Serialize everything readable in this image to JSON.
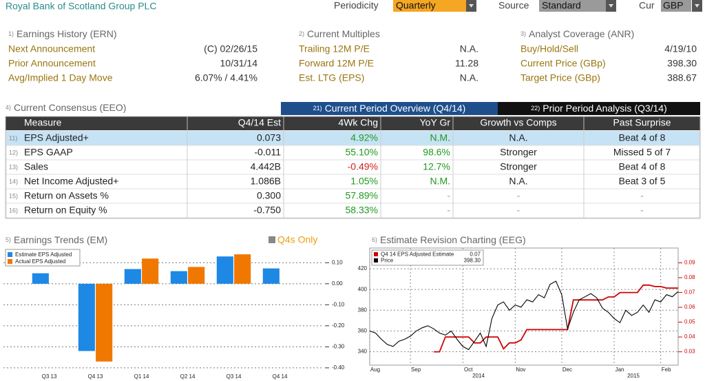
{
  "header": {
    "title": "Royal Bank of Scotland Group PLC",
    "periodicity_label": "Periodicity",
    "periodicity": "Quarterly",
    "source_label": "Source",
    "source": "Standard",
    "currency_label": "Cur",
    "currency": "GBP"
  },
  "panels": [
    {
      "number": "1)",
      "title": "Earnings History (ERN)",
      "rows": [
        [
          "Next Announcement",
          "(C) 02/26/15"
        ],
        [
          "Prior Announcement",
          "10/31/14"
        ],
        [
          "Avg/Implied 1 Day Move",
          "6.07% / 4.41%"
        ]
      ]
    },
    {
      "number": "2)",
      "title": "Current Multiples",
      "rows": [
        [
          "Trailing 12M P/E",
          "N.A."
        ],
        [
          "Forward 12M P/E",
          "11.28"
        ],
        [
          "Est. LTG (EPS)",
          "N.A."
        ]
      ]
    },
    {
      "number": "3)",
      "title": "Analyst Coverage (ANR)",
      "rows": [
        [
          "Buy/Hold/Sell",
          "4/19/10"
        ],
        [
          "Current Price (GBp)",
          "398.30"
        ],
        [
          "Target Price (GBp)",
          "388.67"
        ]
      ]
    }
  ],
  "consensus": {
    "number": "4)",
    "title": "Current Consensus (EEO)",
    "tabs": [
      {
        "number": "21)",
        "label": "Current Period Overview (Q4/14)"
      },
      {
        "number": "22)",
        "label": "Prior Period Analysis (Q3/14)"
      }
    ],
    "columns": [
      "Measure",
      "Q4/14 Est",
      "4Wk Chg",
      "YoY Gr",
      "Growth vs Comps",
      "Past Surprise"
    ],
    "rows": [
      {
        "number": "11)",
        "cells": [
          "EPS Adjusted+",
          "0.073",
          "4.92%",
          "N.M.",
          "N.A.",
          "Beat 4 of 8"
        ]
      },
      {
        "number": "12)",
        "cells": [
          "EPS GAAP",
          "-0.011",
          "55.10%",
          "98.6%",
          "Stronger",
          "Missed 5 of 7"
        ]
      },
      {
        "number": "13)",
        "cells": [
          "Sales",
          "4.442B",
          "-0.49%",
          "12.7%",
          "Stronger",
          "Beat 4 of 8"
        ]
      },
      {
        "number": "14)",
        "cells": [
          "Net Income Adjusted+",
          "1.086B",
          "1.05%",
          "N.M.",
          "N.A.",
          "Beat 3 of 5"
        ]
      },
      {
        "number": "15)",
        "cells": [
          "Return on Assets %",
          "0.300",
          "57.89%",
          "-",
          "-",
          "-"
        ]
      },
      {
        "number": "16)",
        "cells": [
          "Return on Equity %",
          "-0.750",
          "58.33%",
          "-",
          "-",
          "-"
        ]
      }
    ]
  },
  "chart_data": [
    {
      "type": "bar",
      "number": "5)",
      "title": "Earnings Trends (EM)",
      "toggle": "Q4s Only",
      "categories": [
        "Q3 13",
        "Q4 13",
        "Q1 14",
        "Q2 14",
        "Q3 14",
        "Q4 14"
      ],
      "series": [
        {
          "name": "Estimate EPS Adjusted",
          "color": "#1e88e5",
          "values": [
            0.05,
            -0.32,
            0.07,
            0.06,
            0.13,
            0.073
          ]
        },
        {
          "name": "Actual EPS Adjusted",
          "color": "#f07800",
          "values": [
            null,
            -0.37,
            0.12,
            0.08,
            0.14,
            null
          ]
        }
      ],
      "ylim": [
        -0.42,
        0.17
      ],
      "yticks": [
        {
          "value": 0.1,
          "label": "0.10"
        },
        {
          "value": 0,
          "label": "0.00"
        },
        {
          "value": -0.1,
          "label": "-0.10"
        },
        {
          "value": -0.2,
          "label": "-0.20"
        },
        {
          "value": -0.3,
          "label": "-0.30"
        },
        {
          "value": -0.4,
          "label": "-0.40"
        }
      ],
      "grid": true
    },
    {
      "type": "line",
      "number": "6)",
      "title": "Estimate Revision Charting (EEG)",
      "categories": [
        "Aug",
        null,
        null,
        null,
        null,
        null,
        null,
        "Sep",
        null,
        null,
        null,
        null,
        null,
        null,
        null,
        null,
        "Oct",
        null,
        null,
        null,
        null,
        null,
        null,
        null,
        null,
        "Nov",
        null,
        null,
        null,
        null,
        null,
        null,
        null,
        "Dec",
        null,
        null,
        null,
        null,
        null,
        null,
        null,
        null,
        "Jan",
        null,
        null,
        null,
        null,
        null,
        null,
        null,
        "Feb",
        null,
        null,
        null
      ],
      "year_labels": [
        "2014",
        "2015"
      ],
      "series": [
        {
          "name": "Q4 14 EPS Adjusted Estimate",
          "legend_value": "0.07",
          "color": "#d00000",
          "axis": "y2",
          "values": [
            null,
            null,
            null,
            null,
            null,
            null,
            null,
            null,
            null,
            null,
            null,
            0.03,
            0.03,
            0.04,
            0.04,
            0.04,
            0.04,
            0.04,
            0.036,
            0.036,
            0.04,
            0.04,
            0.04,
            0.032,
            0.036,
            0.036,
            0.038,
            0.045,
            0.045,
            0.045,
            0.045,
            0.045,
            0.045,
            0.045,
            0.045,
            0.065,
            0.065,
            0.065,
            0.065,
            0.065,
            0.065,
            0.067,
            0.067,
            0.07,
            0.07,
            0.07,
            0.07,
            0.075,
            0.075,
            0.074,
            0.074,
            0.073,
            0.073,
            0.073
          ]
        },
        {
          "name": "Price",
          "legend_value": "398.30",
          "color": "#000000",
          "values": [
            360,
            358,
            352,
            347,
            345,
            350,
            352,
            355,
            360,
            363,
            365,
            362,
            358,
            356,
            360,
            352,
            345,
            342,
            350,
            358,
            345,
            372,
            385,
            388,
            380,
            385,
            383,
            390,
            388,
            395,
            392,
            405,
            408,
            395,
            362,
            378,
            390,
            393,
            396,
            392,
            382,
            378,
            372,
            368,
            380,
            375,
            378,
            385,
            378,
            390,
            388,
            395,
            393,
            398
          ]
        }
      ],
      "ylim": [
        327,
        440
      ],
      "yticks": [
        340,
        360,
        380,
        400,
        420
      ],
      "y2lim": [
        0.021,
        0.1
      ],
      "y2ticks": [
        0.03,
        0.04,
        0.05,
        0.06,
        0.07,
        0.08,
        0.09
      ],
      "grid": true
    }
  ]
}
